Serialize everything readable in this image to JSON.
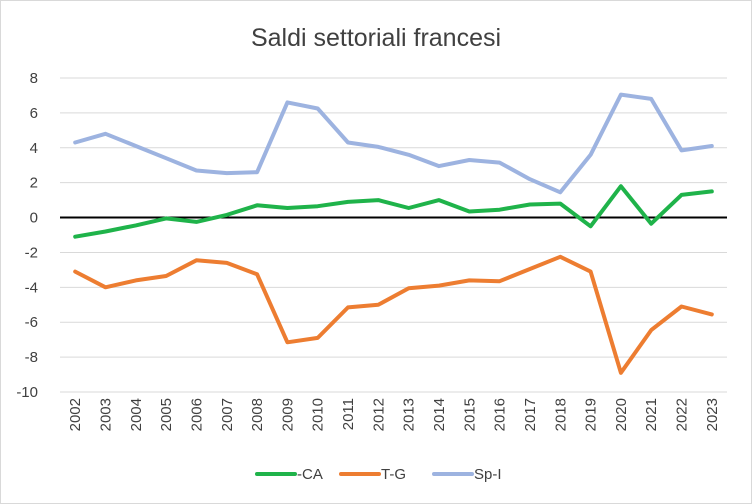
{
  "chart_data": {
    "type": "line",
    "title": "Saldi settoriali francesi",
    "xlabel": "",
    "ylabel": "",
    "categories": [
      "2002",
      "2003",
      "2004",
      "2005",
      "2006",
      "2007",
      "2008",
      "2009",
      "2010",
      "2011",
      "2012",
      "2013",
      "2014",
      "2015",
      "2016",
      "2017",
      "2018",
      "2019",
      "2020",
      "2021",
      "2022",
      "2023"
    ],
    "ylim": [
      -10,
      8
    ],
    "yticks": [
      "8",
      "6",
      "4",
      "2",
      "0",
      "-2",
      "-4",
      "-6",
      "-8",
      "-10"
    ],
    "grid": "horizontal",
    "legend_position": "bottom",
    "series": [
      {
        "name": "-CA",
        "color": "#1fb34a",
        "values": [
          -1.1,
          -0.8,
          -0.45,
          -0.05,
          -0.25,
          0.15,
          0.7,
          0.55,
          0.65,
          0.9,
          1.0,
          0.55,
          1.0,
          0.35,
          0.45,
          0.75,
          0.8,
          -0.5,
          1.8,
          -0.35,
          1.3,
          1.5
        ]
      },
      {
        "name": "T-G",
        "color": "#ed7d31",
        "values": [
          -3.1,
          -4.0,
          -3.6,
          -3.35,
          -2.45,
          -2.6,
          -3.25,
          -7.15,
          -6.9,
          -5.15,
          -5.0,
          -4.05,
          -3.9,
          -3.6,
          -3.65,
          -2.95,
          -2.25,
          -3.1,
          -8.9,
          -6.45,
          -5.1,
          -5.55
        ]
      },
      {
        "name": "Sp-I",
        "color": "#9db3e0",
        "values": [
          4.3,
          4.8,
          4.1,
          3.4,
          2.7,
          2.55,
          2.6,
          6.6,
          6.25,
          4.3,
          4.05,
          3.6,
          2.95,
          3.3,
          3.15,
          2.2,
          1.45,
          3.6,
          7.05,
          6.8,
          3.85,
          4.1
        ]
      }
    ]
  }
}
